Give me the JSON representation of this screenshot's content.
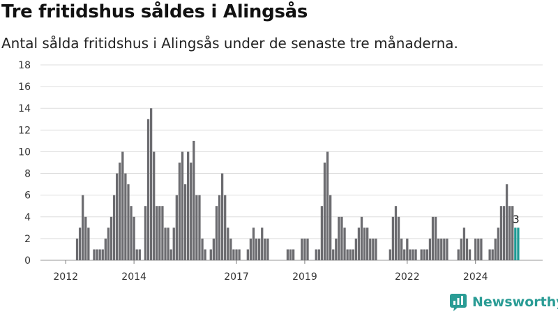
{
  "chart_data": {
    "type": "bar",
    "title": "Tre fritidshus såldes i Alingsås",
    "subtitle": "Antal sålda fritidshus i Alingsås under de senaste tre månaderna.",
    "xlabel": "",
    "ylabel": "",
    "ylim": [
      0,
      18
    ],
    "yticks": [
      0,
      2,
      4,
      6,
      8,
      10,
      12,
      14,
      16,
      18
    ],
    "xticks": [
      {
        "label": "2012",
        "index": 7
      },
      {
        "label": "2014",
        "index": 31
      },
      {
        "label": "2017",
        "index": 67
      },
      {
        "label": "2019",
        "index": 91
      },
      {
        "label": "2022",
        "index": 127
      },
      {
        "label": "2024",
        "index": 151
      }
    ],
    "grid": true,
    "bar_color": "#6c6c70",
    "highlight_color": "#1f9a94",
    "highlight_label": "3",
    "values": [
      0,
      0,
      0,
      0,
      0,
      0,
      0,
      0,
      0,
      0,
      0,
      2,
      3,
      6,
      4,
      3,
      0,
      1,
      1,
      1,
      1,
      2,
      3,
      4,
      6,
      8,
      9,
      10,
      8,
      7,
      5,
      4,
      1,
      1,
      0,
      5,
      13,
      14,
      10,
      5,
      5,
      5,
      3,
      3,
      1,
      3,
      6,
      9,
      10,
      7,
      10,
      9,
      11,
      6,
      6,
      2,
      1,
      0,
      1,
      2,
      5,
      6,
      8,
      6,
      3,
      2,
      1,
      1,
      1,
      0,
      0,
      1,
      2,
      3,
      2,
      2,
      3,
      2,
      2,
      0,
      0,
      0,
      0,
      0,
      0,
      1,
      1,
      1,
      0,
      0,
      2,
      2,
      2,
      0,
      0,
      1,
      1,
      5,
      9,
      10,
      6,
      1,
      2,
      4,
      4,
      3,
      1,
      1,
      1,
      2,
      3,
      4,
      3,
      3,
      2,
      2,
      2,
      0,
      0,
      0,
      0,
      1,
      4,
      5,
      4,
      2,
      1,
      2,
      1,
      1,
      1,
      0,
      1,
      1,
      1,
      2,
      4,
      4,
      2,
      2,
      2,
      2,
      0,
      0,
      0,
      1,
      2,
      3,
      2,
      1,
      0,
      2,
      2,
      2,
      0,
      0,
      1,
      1,
      2,
      3,
      5,
      5,
      7,
      5,
      5,
      3,
      3
    ],
    "highlight_indices": [
      165,
      166
    ]
  },
  "brand": {
    "name": "Newsworthy",
    "color": "#2a9c95",
    "icon": "newsworthy-logo-icon"
  }
}
